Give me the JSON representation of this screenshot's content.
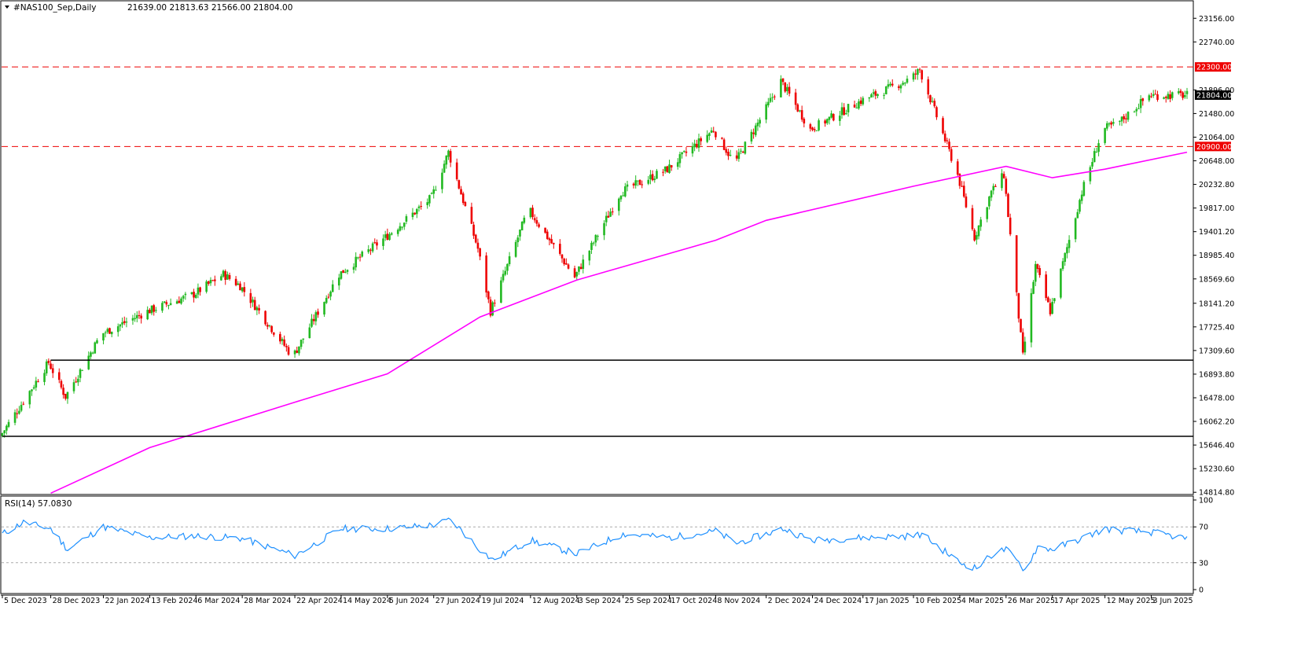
{
  "header": {
    "symbol_label": "#NAS100_Sep,Daily",
    "ohlc_label": "21639.00 21813.63 21566.00 21804.00"
  },
  "rsi_panel": {
    "label": "RSI(14) 57.0830",
    "levels": [
      30,
      70
    ],
    "tick_labels": [
      "100",
      "70",
      "30",
      "0"
    ]
  },
  "colors": {
    "bull": "#22b922",
    "bear": "#ee0000",
    "ma": "#ff00ff",
    "rsi": "#1e90ff",
    "resistance": "#ee0000",
    "support": "#000000"
  },
  "chart_data": {
    "type": "candlestick",
    "price_axis": {
      "ticks": [
        23156.0,
        22740.0,
        21896.0,
        21480.0,
        21064.0,
        20648.0,
        20232.8,
        19817.0,
        19401.2,
        18985.4,
        18569.6,
        18141.2,
        17725.4,
        17309.6,
        16893.8,
        16478.0,
        16062.2,
        15646.4,
        15230.6,
        14814.8
      ],
      "range": [
        14790,
        23450
      ]
    },
    "date_axis": {
      "labels": [
        "5 Dec 2023",
        "28 Dec 2023",
        "22 Jan 2024",
        "13 Feb 2024",
        "6 Mar 2024",
        "28 Mar 2024",
        "22 Apr 2024",
        "14 May 2024",
        "5 Jun 2024",
        "27 Jun 2024",
        "19 Jul 2024",
        "12 Aug 2024",
        "3 Sep 2024",
        "25 Sep 2024",
        "17 Oct 2024",
        "8 Nov 2024",
        "2 Dec 2024",
        "24 Dec 2024",
        "17 Jan 2025",
        "10 Feb 2025",
        "4 Mar 2025",
        "26 Mar 2025",
        "17 Apr 2025",
        "12 May 2025",
        "3 Jun 2025"
      ]
    },
    "horizontal_levels": [
      {
        "value": 22300.0,
        "label": "22300.00",
        "style": "dashed",
        "color": "#ee0000"
      },
      {
        "value": 20900.0,
        "label": "20900.00",
        "style": "dashed",
        "color": "#ee0000"
      }
    ],
    "support_lines": [
      {
        "value": 17140,
        "from_date": "28 Dec 2023"
      },
      {
        "value": 15800,
        "from_date": "5 Dec 2023"
      }
    ],
    "last_price": {
      "value": 21804.0,
      "label": "21804.00"
    },
    "price_path": [
      [
        "5 Dec 2023",
        15800
      ],
      [
        "28 Dec 2023",
        17100
      ],
      [
        "5 Jan 2024",
        16500
      ],
      [
        "22 Jan 2024",
        17600
      ],
      [
        "13 Feb 2024",
        18000
      ],
      [
        "6 Mar 2024",
        18300
      ],
      [
        "20 Mar 2024",
        18650
      ],
      [
        "28 Mar 2024",
        18450
      ],
      [
        "22 Apr 2024",
        17200
      ],
      [
        "14 May 2024",
        18650
      ],
      [
        "5 Jun 2024",
        19300
      ],
      [
        "27 Jun 2024",
        20000
      ],
      [
        "5 Jul 2024",
        20800
      ],
      [
        "19 Jul 2024",
        19100
      ],
      [
        "25 Jul 2024",
        18000
      ],
      [
        "12 Aug 2024",
        19800
      ],
      [
        "3 Sep 2024",
        18600
      ],
      [
        "25 Sep 2024",
        20100
      ],
      [
        "17 Oct 2024",
        20500
      ],
      [
        "8 Nov 2024",
        21200
      ],
      [
        "18 Nov 2024",
        20600
      ],
      [
        "2 Dec 2024",
        21500
      ],
      [
        "10 Dec 2024",
        22050
      ],
      [
        "24 Dec 2024",
        21200
      ],
      [
        "17 Jan 2025",
        21700
      ],
      [
        "10 Feb 2025",
        22100
      ],
      [
        "14 Feb 2025",
        22250
      ],
      [
        "4 Mar 2025",
        20400
      ],
      [
        "12 Mar 2025",
        19300
      ],
      [
        "20 Mar 2025",
        20100
      ],
      [
        "26 Mar 2025",
        20400
      ],
      [
        "4 Apr 2025",
        17200
      ],
      [
        "10 Apr 2025",
        18800
      ],
      [
        "17 Apr 2025",
        18000
      ],
      [
        "2 May 2025",
        20100
      ],
      [
        "12 May 2025",
        21200
      ],
      [
        "19 May 2025",
        21300
      ],
      [
        "3 Jun 2025",
        21800
      ],
      [
        "20 Jun 2025",
        21804
      ]
    ],
    "moving_average": [
      [
        "28 Dec 2023",
        14800
      ],
      [
        "13 Feb 2024",
        15600
      ],
      [
        "22 Apr 2024",
        16400
      ],
      [
        "5 Jun 2024",
        16900
      ],
      [
        "19 Jul 2024",
        17900
      ],
      [
        "3 Sep 2024",
        18550
      ],
      [
        "8 Nov 2024",
        19250
      ],
      [
        "2 Dec 2024",
        19600
      ],
      [
        "10 Feb 2025",
        20200
      ],
      [
        "26 Mar 2025",
        20550
      ],
      [
        "17 Apr 2025",
        20350
      ],
      [
        "12 May 2025",
        20500
      ],
      [
        "20 Jun 2025",
        20800
      ]
    ],
    "rsi_path": [
      [
        "5 Dec 2023",
        62
      ],
      [
        "15 Dec 2023",
        75
      ],
      [
        "28 Dec 2023",
        68
      ],
      [
        "5 Jan 2024",
        45
      ],
      [
        "22 Jan 2024",
        70
      ],
      [
        "13 Feb 2024",
        58
      ],
      [
        "6 Mar 2024",
        60
      ],
      [
        "28 Mar 2024",
        57
      ],
      [
        "22 Apr 2024",
        38
      ],
      [
        "14 May 2024",
        68
      ],
      [
        "5 Jun 2024",
        68
      ],
      [
        "27 Jun 2024",
        72
      ],
      [
        "5 Jul 2024",
        78
      ],
      [
        "19 Jul 2024",
        45
      ],
      [
        "25 Jul 2024",
        33
      ],
      [
        "12 Aug 2024",
        55
      ],
      [
        "3 Sep 2024",
        40
      ],
      [
        "25 Sep 2024",
        62
      ],
      [
        "17 Oct 2024",
        58
      ],
      [
        "8 Nov 2024",
        65
      ],
      [
        "18 Nov 2024",
        52
      ],
      [
        "2 Dec 2024",
        62
      ],
      [
        "10 Dec 2024",
        68
      ],
      [
        "24 Dec 2024",
        55
      ],
      [
        "17 Jan 2025",
        58
      ],
      [
        "10 Feb 2025",
        60
      ],
      [
        "14 Feb 2025",
        62
      ],
      [
        "4 Mar 2025",
        30
      ],
      [
        "12 Mar 2025",
        24
      ],
      [
        "20 Mar 2025",
        40
      ],
      [
        "26 Mar 2025",
        45
      ],
      [
        "4 Apr 2025",
        22
      ],
      [
        "10 Apr 2025",
        48
      ],
      [
        "17 Apr 2025",
        45
      ],
      [
        "2 May 2025",
        58
      ],
      [
        "12 May 2025",
        68
      ],
      [
        "19 May 2025",
        66
      ],
      [
        "3 Jun 2025",
        64
      ],
      [
        "20 Jun 2025",
        57
      ]
    ]
  }
}
